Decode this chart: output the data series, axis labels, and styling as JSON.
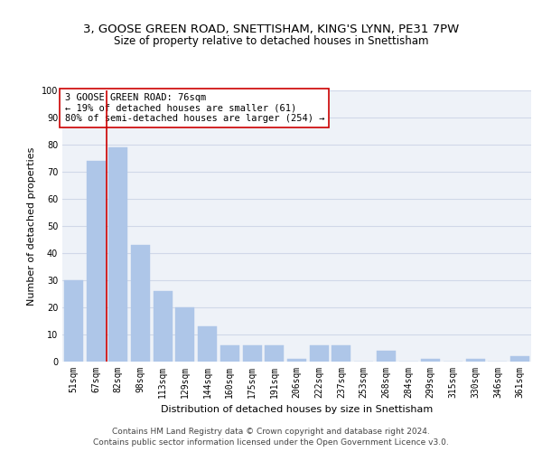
{
  "title1": "3, GOOSE GREEN ROAD, SNETTISHAM, KING'S LYNN, PE31 7PW",
  "title2": "Size of property relative to detached houses in Snettisham",
  "xlabel": "Distribution of detached houses by size in Snettisham",
  "ylabel": "Number of detached properties",
  "categories": [
    "51sqm",
    "67sqm",
    "82sqm",
    "98sqm",
    "113sqm",
    "129sqm",
    "144sqm",
    "160sqm",
    "175sqm",
    "191sqm",
    "206sqm",
    "222sqm",
    "237sqm",
    "253sqm",
    "268sqm",
    "284sqm",
    "299sqm",
    "315sqm",
    "330sqm",
    "346sqm",
    "361sqm"
  ],
  "values": [
    30,
    74,
    79,
    43,
    26,
    20,
    13,
    6,
    6,
    6,
    1,
    6,
    6,
    0,
    4,
    0,
    1,
    0,
    1,
    0,
    2
  ],
  "bar_color": "#aec6e8",
  "bar_edgecolor": "#aec6e8",
  "vline_x": 1.5,
  "vline_color": "#cc0000",
  "annotation_text": "3 GOOSE GREEN ROAD: 76sqm\n← 19% of detached houses are smaller (61)\n80% of semi-detached houses are larger (254) →",
  "annotation_box_color": "#ffffff",
  "annotation_box_edgecolor": "#cc0000",
  "ylim": [
    0,
    100
  ],
  "yticks": [
    0,
    10,
    20,
    30,
    40,
    50,
    60,
    70,
    80,
    90,
    100
  ],
  "grid_color": "#d0d8e8",
  "bg_color": "#eef2f8",
  "footer1": "Contains HM Land Registry data © Crown copyright and database right 2024.",
  "footer2": "Contains public sector information licensed under the Open Government Licence v3.0.",
  "title_fontsize": 9.5,
  "subtitle_fontsize": 8.5,
  "axis_label_fontsize": 8,
  "tick_fontsize": 7,
  "annotation_fontsize": 7.5,
  "footer_fontsize": 6.5
}
